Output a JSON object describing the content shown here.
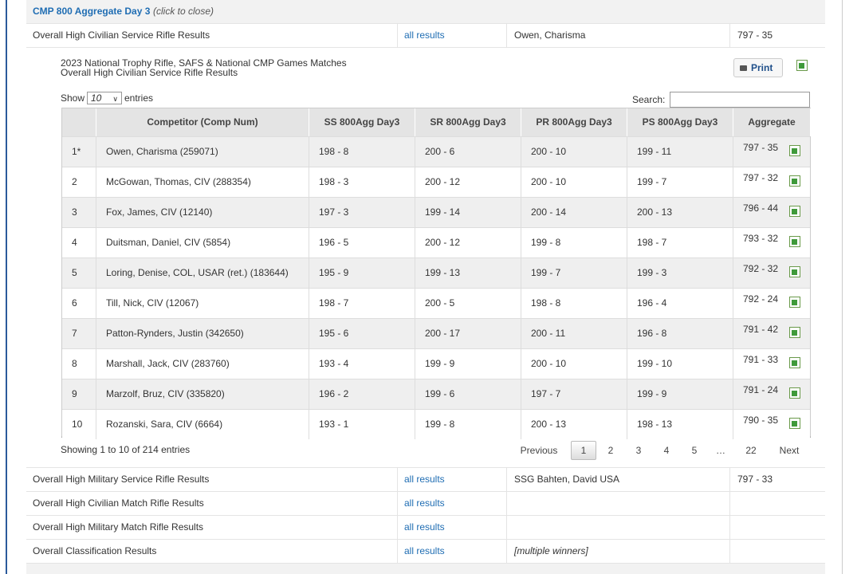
{
  "header": {
    "title": "CMP 800 Aggregate Day 3",
    "hint": "(click to close)"
  },
  "results": [
    {
      "label": "Overall High Civilian Service Rifle Results",
      "link": "all results",
      "winner": "Owen, Charisma",
      "score": "797 - 35"
    },
    {
      "label": "Overall High Military Service Rifle Results",
      "link": "all results",
      "winner": "SSG Bahten, David USA",
      "score": "797 - 33"
    },
    {
      "label": "Overall High Civilian Match Rifle Results",
      "link": "all results"
    },
    {
      "label": "Overall High Military Match Rifle Results",
      "link": "all results"
    },
    {
      "label": "Overall Classification Results",
      "link": "all results",
      "winner": "[multiple winners]"
    }
  ],
  "panel": {
    "heading1": "2023 National Trophy Rifle, SAFS & National CMP Games Matches",
    "heading2": "Overall High Civilian Service Rifle Results",
    "print": "Print",
    "show": "Show",
    "entries_select": "10",
    "entries": "entries",
    "search": "Search:",
    "columns": [
      "Competitor (Comp Num)",
      "SS 800Agg Day3",
      "SR 800Agg Day3",
      "PR 800Agg Day3",
      "PS 800Agg Day3",
      "Aggregate"
    ],
    "rows": [
      [
        "1*",
        "Owen, Charisma (259071)",
        "198 - 8",
        "200 - 6",
        "200 - 10",
        "199 - 11",
        "797 - 35"
      ],
      [
        "2",
        "McGowan, Thomas, CIV (288354)",
        "198 - 3",
        "200 - 12",
        "200 - 10",
        "199 - 7",
        "797 - 32"
      ],
      [
        "3",
        "Fox, James, CIV (12140)",
        "197 - 3",
        "199 - 14",
        "200 - 14",
        "200 - 13",
        "796 - 44"
      ],
      [
        "4",
        "Duitsman, Daniel, CIV (5854)",
        "196 - 5",
        "200 - 12",
        "199 - 8",
        "198 - 7",
        "793 - 32"
      ],
      [
        "5",
        "Loring, Denise, COL, USAR (ret.) (183644)",
        "195 - 9",
        "199 - 13",
        "199 - 7",
        "199 - 3",
        "792 - 32"
      ],
      [
        "6",
        "Till, Nick, CIV (12067)",
        "198 - 7",
        "200 - 5",
        "198 - 8",
        "196 - 4",
        "792 - 24"
      ],
      [
        "7",
        "Patton-Rynders, Justin (342650)",
        "195 - 6",
        "200 - 17",
        "200 - 11",
        "196 - 8",
        "791 - 42"
      ],
      [
        "8",
        "Marshall, Jack, CIV (283760)",
        "193 - 4",
        "199 - 9",
        "200 - 10",
        "199 - 10",
        "791 - 33"
      ],
      [
        "9",
        "Marzolf, Bruz, CIV (335820)",
        "196 - 2",
        "199 - 6",
        "197 - 7",
        "199 - 9",
        "791 - 24"
      ],
      [
        "10",
        "Rozanski, Sara, CIV (6664)",
        "193 - 1",
        "199 - 8",
        "200 - 13",
        "198 - 13",
        "790 - 35"
      ]
    ],
    "info": "Showing 1 to 10 of 214 entries",
    "pagination": [
      "Previous",
      "1",
      "2",
      "3",
      "4",
      "5",
      "…",
      "22",
      "Next"
    ]
  }
}
